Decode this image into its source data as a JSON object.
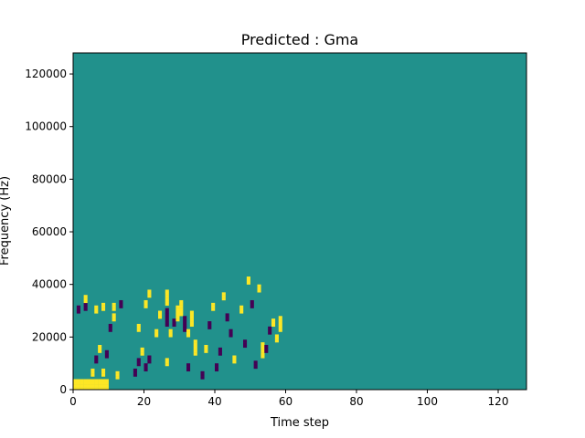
{
  "chart_data": {
    "type": "heatmap",
    "title": "Predicted : Gma",
    "xlabel": "Time step",
    "ylabel": "Frequency (Hz)",
    "xlim": [
      0,
      128
    ],
    "ylim": [
      0,
      128000
    ],
    "x_ticks": [
      0,
      20,
      40,
      60,
      80,
      100,
      120
    ],
    "y_ticks": [
      0,
      20000,
      40000,
      60000,
      80000,
      100000,
      120000
    ],
    "grid": false,
    "colormap": "viridis",
    "colors": {
      "background": "#21918c",
      "high": "#fde725",
      "low": "#440154"
    },
    "bins": {
      "time_steps": 128,
      "freq_bins": 128,
      "bin_hz": 1000
    },
    "background_value": 0.5,
    "cells": [
      [
        0,
        0,
        1
      ],
      [
        1,
        0,
        1
      ],
      [
        2,
        0,
        1
      ],
      [
        3,
        0,
        1
      ],
      [
        4,
        0,
        1
      ],
      [
        5,
        0,
        1
      ],
      [
        6,
        0,
        1
      ],
      [
        7,
        0,
        1
      ],
      [
        8,
        0,
        1
      ],
      [
        9,
        0,
        1
      ],
      [
        0,
        1,
        1
      ],
      [
        1,
        1,
        1
      ],
      [
        2,
        1,
        1
      ],
      [
        3,
        1,
        1
      ],
      [
        4,
        1,
        1
      ],
      [
        5,
        1,
        1
      ],
      [
        6,
        1,
        1
      ],
      [
        7,
        1,
        1
      ],
      [
        8,
        1,
        1
      ],
      [
        9,
        1,
        1
      ],
      [
        0,
        2,
        1
      ],
      [
        1,
        2,
        1
      ],
      [
        2,
        2,
        1
      ],
      [
        3,
        2,
        1
      ],
      [
        4,
        2,
        1
      ],
      [
        5,
        2,
        1
      ],
      [
        6,
        2,
        1
      ],
      [
        7,
        2,
        1
      ],
      [
        8,
        2,
        1
      ],
      [
        9,
        2,
        1
      ],
      [
        0,
        3,
        1
      ],
      [
        1,
        3,
        1
      ],
      [
        2,
        3,
        1
      ],
      [
        3,
        3,
        1
      ],
      [
        4,
        3,
        1
      ],
      [
        5,
        3,
        1
      ],
      [
        6,
        3,
        1
      ],
      [
        7,
        3,
        1
      ],
      [
        8,
        3,
        1
      ],
      [
        9,
        3,
        1
      ],
      [
        5,
        5,
        1
      ],
      [
        5,
        6,
        1
      ],
      [
        5,
        7,
        1
      ],
      [
        8,
        5,
        1
      ],
      [
        8,
        6,
        1
      ],
      [
        8,
        7,
        1
      ],
      [
        6,
        10,
        0
      ],
      [
        6,
        11,
        0
      ],
      [
        6,
        12,
        0
      ],
      [
        7,
        14,
        1
      ],
      [
        7,
        15,
        1
      ],
      [
        7,
        16,
        1
      ],
      [
        9,
        12,
        0
      ],
      [
        9,
        13,
        0
      ],
      [
        9,
        14,
        0
      ],
      [
        12,
        4,
        1
      ],
      [
        12,
        5,
        1
      ],
      [
        12,
        6,
        1
      ],
      [
        10,
        22,
        0
      ],
      [
        10,
        23,
        0
      ],
      [
        10,
        24,
        0
      ],
      [
        11,
        26,
        1
      ],
      [
        11,
        27,
        1
      ],
      [
        11,
        28,
        1
      ],
      [
        1,
        29,
        0
      ],
      [
        1,
        30,
        0
      ],
      [
        1,
        31,
        0
      ],
      [
        3,
        30,
        0
      ],
      [
        3,
        31,
        0
      ],
      [
        3,
        32,
        0
      ],
      [
        6,
        29,
        1
      ],
      [
        6,
        30,
        1
      ],
      [
        6,
        31,
        1
      ],
      [
        8,
        30,
        1
      ],
      [
        8,
        31,
        1
      ],
      [
        8,
        32,
        1
      ],
      [
        11,
        30,
        1
      ],
      [
        11,
        31,
        1
      ],
      [
        11,
        32,
        1
      ],
      [
        13,
        31,
        0
      ],
      [
        13,
        32,
        0
      ],
      [
        13,
        33,
        0
      ],
      [
        3,
        33,
        1
      ],
      [
        3,
        34,
        1
      ],
      [
        3,
        35,
        1
      ],
      [
        17,
        5,
        0
      ],
      [
        17,
        6,
        0
      ],
      [
        17,
        7,
        0
      ],
      [
        18,
        9,
        0
      ],
      [
        18,
        10,
        0
      ],
      [
        18,
        11,
        0
      ],
      [
        19,
        13,
        1
      ],
      [
        19,
        14,
        1
      ],
      [
        19,
        15,
        1
      ],
      [
        20,
        7,
        0
      ],
      [
        20,
        8,
        0
      ],
      [
        20,
        9,
        0
      ],
      [
        21,
        10,
        0
      ],
      [
        21,
        11,
        0
      ],
      [
        21,
        12,
        0
      ],
      [
        18,
        22,
        1
      ],
      [
        18,
        23,
        1
      ],
      [
        18,
        24,
        1
      ],
      [
        20,
        31,
        1
      ],
      [
        20,
        32,
        1
      ],
      [
        20,
        33,
        1
      ],
      [
        21,
        35,
        1
      ],
      [
        21,
        36,
        1
      ],
      [
        21,
        37,
        1
      ],
      [
        23,
        20,
        1
      ],
      [
        23,
        21,
        1
      ],
      [
        23,
        22,
        1
      ],
      [
        24,
        27,
        1
      ],
      [
        24,
        28,
        1
      ],
      [
        24,
        29,
        1
      ],
      [
        26,
        9,
        1
      ],
      [
        26,
        10,
        1
      ],
      [
        26,
        11,
        1
      ],
      [
        26,
        24,
        0
      ],
      [
        26,
        25,
        0
      ],
      [
        26,
        26,
        0
      ],
      [
        26,
        27,
        0
      ],
      [
        26,
        28,
        0
      ],
      [
        26,
        29,
        0
      ],
      [
        26,
        30,
        0
      ],
      [
        26,
        32,
        1
      ],
      [
        26,
        33,
        1
      ],
      [
        26,
        34,
        1
      ],
      [
        26,
        35,
        1
      ],
      [
        26,
        36,
        1
      ],
      [
        26,
        37,
        1
      ],
      [
        27,
        20,
        1
      ],
      [
        27,
        21,
        1
      ],
      [
        27,
        22,
        1
      ],
      [
        28,
        24,
        0
      ],
      [
        28,
        25,
        0
      ],
      [
        28,
        26,
        0
      ],
      [
        29,
        26,
        1
      ],
      [
        29,
        27,
        1
      ],
      [
        29,
        28,
        1
      ],
      [
        29,
        29,
        1
      ],
      [
        29,
        30,
        1
      ],
      [
        29,
        31,
        1
      ],
      [
        30,
        28,
        1
      ],
      [
        30,
        29,
        1
      ],
      [
        30,
        30,
        1
      ],
      [
        30,
        31,
        1
      ],
      [
        30,
        32,
        1
      ],
      [
        30,
        33,
        1
      ],
      [
        31,
        22,
        0
      ],
      [
        31,
        23,
        0
      ],
      [
        31,
        24,
        0
      ],
      [
        31,
        25,
        0
      ],
      [
        31,
        26,
        0
      ],
      [
        31,
        27,
        0
      ],
      [
        32,
        7,
        0
      ],
      [
        32,
        8,
        0
      ],
      [
        32,
        9,
        0
      ],
      [
        32,
        20,
        1
      ],
      [
        32,
        21,
        1
      ],
      [
        32,
        22,
        1
      ],
      [
        33,
        24,
        1
      ],
      [
        33,
        25,
        1
      ],
      [
        33,
        26,
        1
      ],
      [
        33,
        27,
        1
      ],
      [
        33,
        28,
        1
      ],
      [
        33,
        29,
        1
      ],
      [
        34,
        13,
        1
      ],
      [
        34,
        14,
        1
      ],
      [
        34,
        15,
        1
      ],
      [
        34,
        16,
        1
      ],
      [
        34,
        17,
        1
      ],
      [
        34,
        18,
        1
      ],
      [
        36,
        4,
        0
      ],
      [
        36,
        5,
        0
      ],
      [
        36,
        6,
        0
      ],
      [
        37,
        14,
        1
      ],
      [
        37,
        15,
        1
      ],
      [
        37,
        16,
        1
      ],
      [
        38,
        23,
        0
      ],
      [
        38,
        24,
        0
      ],
      [
        38,
        25,
        0
      ],
      [
        39,
        30,
        1
      ],
      [
        39,
        31,
        1
      ],
      [
        39,
        32,
        1
      ],
      [
        40,
        7,
        0
      ],
      [
        40,
        8,
        0
      ],
      [
        40,
        9,
        0
      ],
      [
        41,
        13,
        0
      ],
      [
        41,
        14,
        0
      ],
      [
        41,
        15,
        0
      ],
      [
        42,
        34,
        1
      ],
      [
        42,
        35,
        1
      ],
      [
        42,
        36,
        1
      ],
      [
        43,
        26,
        0
      ],
      [
        43,
        27,
        0
      ],
      [
        43,
        28,
        0
      ],
      [
        44,
        20,
        0
      ],
      [
        44,
        21,
        0
      ],
      [
        44,
        22,
        0
      ],
      [
        45,
        10,
        1
      ],
      [
        45,
        11,
        1
      ],
      [
        45,
        12,
        1
      ],
      [
        47,
        29,
        1
      ],
      [
        47,
        30,
        1
      ],
      [
        47,
        31,
        1
      ],
      [
        48,
        16,
        0
      ],
      [
        48,
        17,
        0
      ],
      [
        48,
        18,
        0
      ],
      [
        49,
        40,
        1
      ],
      [
        49,
        41,
        1
      ],
      [
        49,
        42,
        1
      ],
      [
        50,
        31,
        0
      ],
      [
        50,
        32,
        0
      ],
      [
        50,
        33,
        0
      ],
      [
        51,
        8,
        0
      ],
      [
        51,
        9,
        0
      ],
      [
        51,
        10,
        0
      ],
      [
        52,
        37,
        1
      ],
      [
        52,
        38,
        1
      ],
      [
        52,
        39,
        1
      ],
      [
        53,
        12,
        1
      ],
      [
        53,
        13,
        1
      ],
      [
        53,
        14,
        1
      ],
      [
        53,
        15,
        1
      ],
      [
        53,
        16,
        1
      ],
      [
        53,
        17,
        1
      ],
      [
        54,
        14,
        0
      ],
      [
        54,
        15,
        0
      ],
      [
        54,
        16,
        0
      ],
      [
        55,
        21,
        0
      ],
      [
        55,
        22,
        0
      ],
      [
        55,
        23,
        0
      ],
      [
        56,
        24,
        1
      ],
      [
        56,
        25,
        1
      ],
      [
        56,
        26,
        1
      ],
      [
        57,
        18,
        1
      ],
      [
        57,
        19,
        1
      ],
      [
        57,
        20,
        1
      ],
      [
        58,
        22,
        1
      ],
      [
        58,
        23,
        1
      ],
      [
        58,
        24,
        1
      ],
      [
        58,
        25,
        1
      ],
      [
        58,
        26,
        1
      ],
      [
        58,
        27,
        1
      ]
    ]
  }
}
